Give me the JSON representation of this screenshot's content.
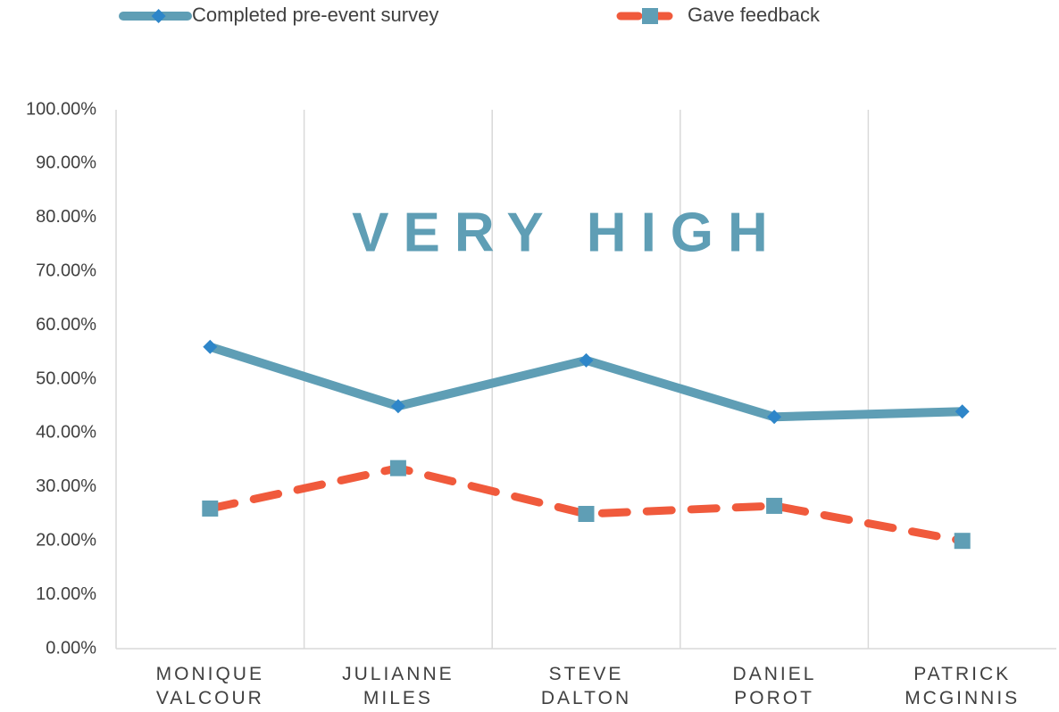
{
  "chart_data": {
    "type": "line",
    "annotation": "VERY HIGH",
    "annotation_color": "#5f9eb5",
    "categories": [
      "MONIQUE VALCOUR",
      "JULIANNE MILES",
      "STEVE DALTON",
      "DANIEL POROT",
      "PATRICK MCGINNIS"
    ],
    "series": [
      {
        "name": "Completed pre-event survey",
        "color": "#5f9eb5",
        "marker": "diamond",
        "marker_color": "#2e86c9",
        "dashed": false,
        "values": [
          56,
          45,
          53.5,
          43,
          44
        ]
      },
      {
        "name": "Gave feedback",
        "color": "#f05a3c",
        "marker": "square",
        "marker_color": "#5f9eb5",
        "dashed": true,
        "values": [
          26,
          33.5,
          25,
          26.5,
          20
        ]
      }
    ],
    "ylim": [
      0,
      100
    ],
    "yticks": [
      {
        "value": 0,
        "label": "0.00%"
      },
      {
        "value": 10,
        "label": "10.00%"
      },
      {
        "value": 20,
        "label": "20.00%"
      },
      {
        "value": 30,
        "label": "30.00%"
      },
      {
        "value": 40,
        "label": "40.00%"
      },
      {
        "value": 50,
        "label": "50.00%"
      },
      {
        "value": 60,
        "label": "60.00%"
      },
      {
        "value": 70,
        "label": "70.00%"
      },
      {
        "value": 80,
        "label": "80.00%"
      },
      {
        "value": 90,
        "label": "90.00%"
      },
      {
        "value": 100,
        "label": "100.00%"
      }
    ],
    "grid": "x",
    "legend": "top"
  }
}
